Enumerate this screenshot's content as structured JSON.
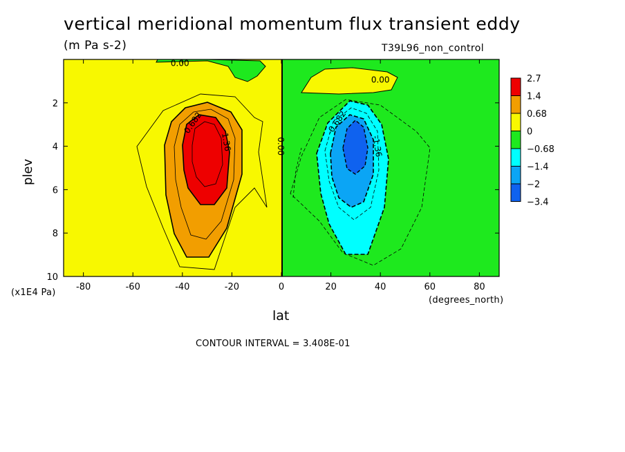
{
  "chart_data": {
    "type": "heatmap",
    "title": "vertical meridional momentum flux transient eddy",
    "units": "(m Pa s-2)",
    "run_label": "T39L96_non_control",
    "xlabel": "lat",
    "xunit": "(degrees_north)",
    "ylabel": "plev",
    "yunit": "(x1E4 Pa)",
    "footer": "CONTOUR INTERVAL = 3.408E-01",
    "xlim": [
      -88,
      88
    ],
    "ylim": [
      10,
      0
    ],
    "x_ticks": [
      -80,
      -60,
      -40,
      -20,
      0,
      20,
      40,
      60,
      80
    ],
    "y_ticks": [
      2,
      4,
      6,
      8,
      10
    ],
    "contour_labels": [
      {
        "text": "0.00",
        "x": -41,
        "y": 0.15
      },
      {
        "text": "0.00",
        "x": 40,
        "y": 0.9
      },
      {
        "text": "0.682",
        "x": -36,
        "y": 2.9
      },
      {
        "text": "1.36",
        "x": -22,
        "y": 3.8
      },
      {
        "text": "0.00",
        "x": 0,
        "y": 4.0
      },
      {
        "text": "-0.682",
        "x": 22,
        "y": 2.9
      },
      {
        "text": "-1.36",
        "x": 39,
        "y": 4.0
      }
    ],
    "regions": [
      {
        "level": "pos_core",
        "center_lat": -31,
        "center_plev": 4.2,
        "max_value": 2.7
      },
      {
        "level": "neg_core",
        "center_lat": 30,
        "center_plev": 4.1,
        "min_value": -3.4
      }
    ],
    "legend": {
      "placement": "right",
      "labels": [
        "2.7",
        "1.4",
        "0.68",
        "0",
        "-0.68",
        "-1.4",
        "-2",
        "-3.4"
      ],
      "colors": [
        "#ee0000",
        "#f29e00",
        "#f8f800",
        "#1ee91e",
        "#00ffff",
        "#0ba5f5",
        "#0f62ef"
      ]
    }
  }
}
